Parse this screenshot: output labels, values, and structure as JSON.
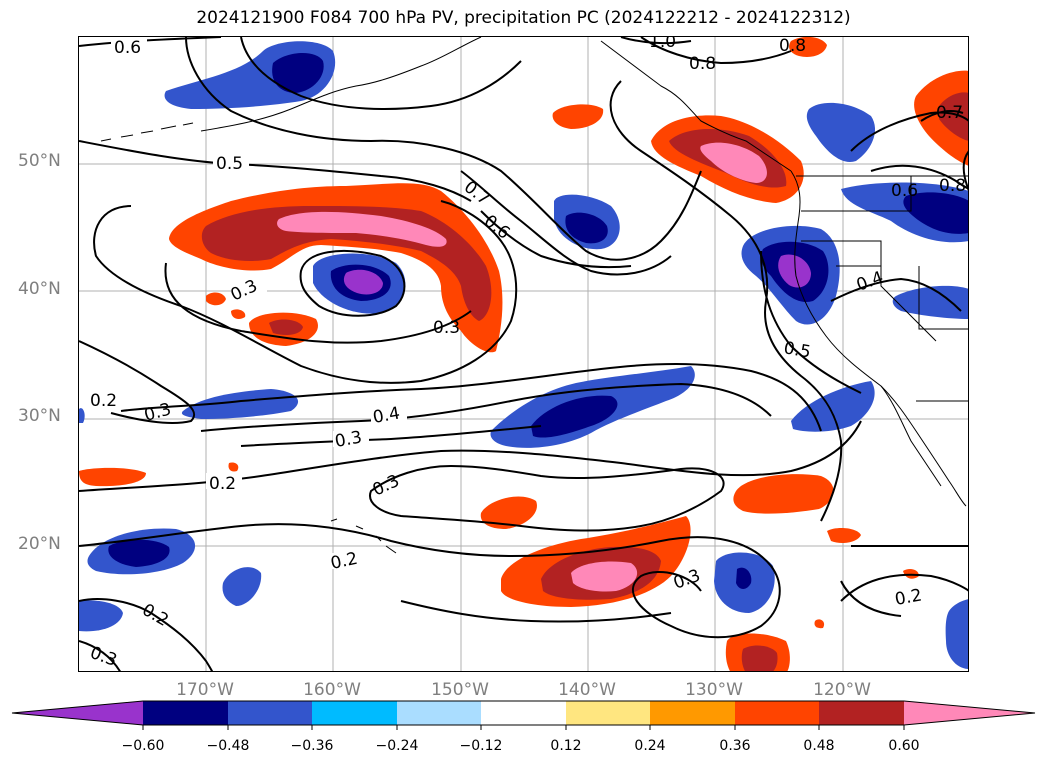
{
  "title": "2024121900 F084 700 hPa PV, precipitation PC (2024122212 - 2024122312)",
  "map": {
    "lat_ticks": [
      "50°N",
      "40°N",
      "30°N",
      "20°N"
    ],
    "lon_ticks": [
      "170°W",
      "160°W",
      "150°W",
      "140°W",
      "130°W",
      "120°W"
    ],
    "contour_labels": [
      "0.6",
      "0.5",
      "0.7",
      "0.6",
      "0.3",
      "0.3",
      "0.2",
      "0.3",
      "0.4",
      "0.3",
      "0.2",
      "0.3",
      "0.2",
      "0.2",
      "0.3",
      "0.3",
      "0.4",
      "0.5",
      "0.6",
      "0.8",
      "0.8",
      "0.7",
      "0.8",
      "0.2",
      "1.0"
    ],
    "gridlines": true
  },
  "colorbar": {
    "labels": [
      "−0.60",
      "−0.48",
      "−0.36",
      "−0.24",
      "−0.12",
      "0.12",
      "0.24",
      "0.36",
      "0.48",
      "0.60"
    ],
    "colors": [
      "#9933cc",
      "#000080",
      "#3355cc",
      "#00bbff",
      "#aaddff",
      "#ffffff",
      "#ffe680",
      "#ff9900",
      "#ff4400",
      "#b22222",
      "#ff88b8",
      "#ff88b8"
    ],
    "extend": "both"
  },
  "palette": {
    "purple": "#9933cc",
    "navy": "#000080",
    "blue": "#3355cc",
    "cyan": "#00bbff",
    "orange": "#ff9900",
    "redorange": "#ff4400",
    "darkred": "#b22222",
    "pink": "#ff88b8",
    "yellow": "#ffe680"
  }
}
